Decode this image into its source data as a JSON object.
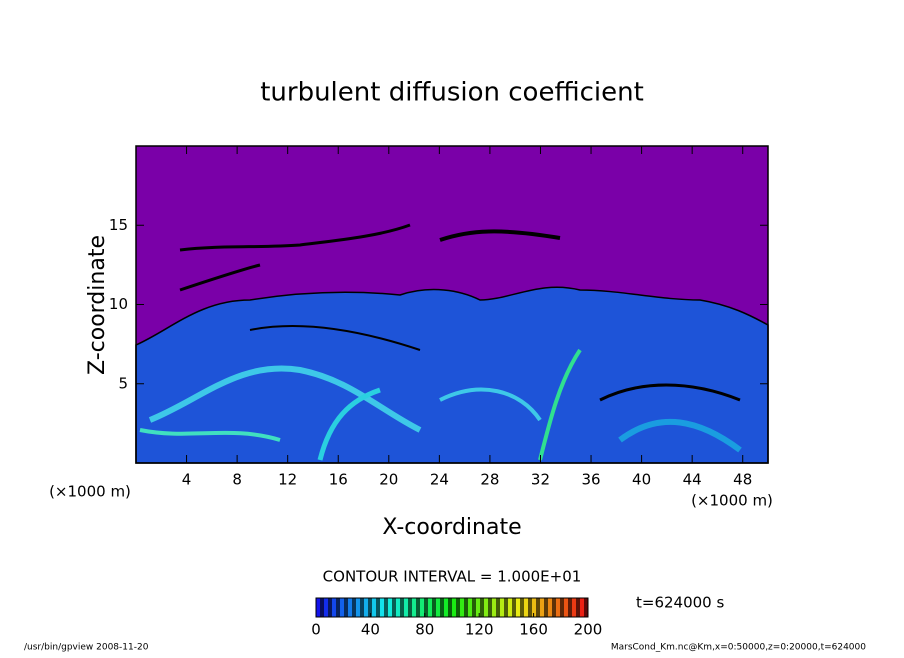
{
  "chart_data": {
    "type": "contour",
    "title": "turbulent diffusion coefficient",
    "x_label": "X-coordinate",
    "y_label": "Z-coordinate",
    "x_unit": "(×1000 m)",
    "y_unit": "(×1000 m)",
    "xlim": [
      0,
      50
    ],
    "xticks": [
      4,
      8,
      12,
      16,
      20,
      24,
      28,
      32,
      36,
      40,
      44,
      48
    ],
    "ylim": [
      0,
      20
    ],
    "yticks": [
      5,
      10,
      15
    ],
    "colorbar": {
      "label": "CONTOUR INTERVAL = 1.000E+01",
      "lim": [
        0,
        200
      ],
      "ticks": [
        0,
        40,
        80,
        120,
        160,
        200
      ]
    },
    "annotation": "t=624000 s",
    "footer_left": "/usr/bin/gpview  2008-11-20",
    "footer_right": "MarsCond_Km.nc@Km,x=0:50000,z=0:20000,t=624000"
  }
}
